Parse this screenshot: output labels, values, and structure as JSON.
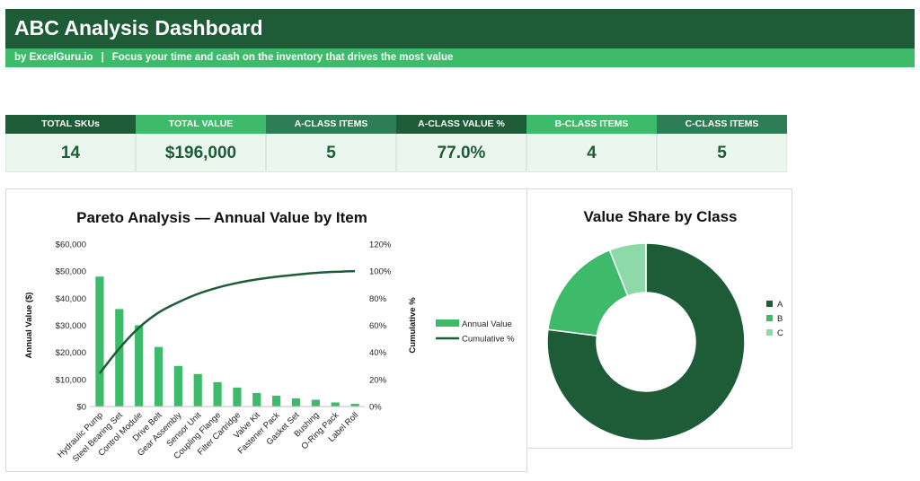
{
  "header": {
    "title": "ABC Analysis Dashboard",
    "byline": "by ExcelGuru.io",
    "separator": "|",
    "tagline": "Focus your time and cash on the inventory that drives the most value"
  },
  "colors": {
    "dark_green": "#1e5c38",
    "green": "#3dba6a",
    "mid_green": "#2e7d57",
    "light_green": "#8ed9a8",
    "kpi_value_bg": "#eaf6ee"
  },
  "kpis": [
    {
      "label": "TOTAL SKUs",
      "value": "14",
      "color": "#1e5c38"
    },
    {
      "label": "TOTAL VALUE",
      "value": "$196,000",
      "color": "#3dba6a"
    },
    {
      "label": "A-CLASS ITEMS",
      "value": "5",
      "color": "#2e7d57"
    },
    {
      "label": "A-CLASS VALUE %",
      "value": "77.0%",
      "color": "#1e5c38"
    },
    {
      "label": "B-CLASS ITEMS",
      "value": "4",
      "color": "#3dba6a"
    },
    {
      "label": "C-CLASS ITEMS",
      "value": "5",
      "color": "#2e7d57"
    }
  ],
  "chart_data": [
    {
      "type": "bar",
      "title": "Pareto Analysis — Annual Value by Item",
      "xlabel": "",
      "ylabel": "Annual Value ($)",
      "y2label": "Cumulative %",
      "categories": [
        "Hydraulic Pump",
        "Steel Bearing Set",
        "Control Module",
        "Drive Belt",
        "Gear Assembly",
        "Sensor Unit",
        "Coupling Flange",
        "Filter Cartridge",
        "Valve Kit",
        "Fastener Pack",
        "Gasket Set",
        "Bushing",
        "O-Ring Pack",
        "Label Roll"
      ],
      "series": [
        {
          "name": "Annual Value",
          "type": "bar",
          "axis": "left",
          "color": "#3dba6a",
          "values": [
            48000,
            36000,
            30000,
            22000,
            15000,
            12000,
            9000,
            7000,
            5000,
            4000,
            3000,
            2500,
            1500,
            1000
          ]
        },
        {
          "name": "Cumulative %",
          "type": "line",
          "axis": "right",
          "color": "#1e5c38",
          "values": [
            24.5,
            42.9,
            58.2,
            69.4,
            77.0,
            83.2,
            87.8,
            91.3,
            93.9,
            95.9,
            97.4,
            98.7,
            99.5,
            100.0
          ]
        }
      ],
      "ylim": [
        0,
        60000
      ],
      "y_ticks": [
        "$0",
        "$10,000",
        "$20,000",
        "$30,000",
        "$40,000",
        "$50,000",
        "$60,000"
      ],
      "y2lim": [
        0,
        120
      ],
      "y2_ticks": [
        "0%",
        "20%",
        "40%",
        "60%",
        "80%",
        "100%",
        "120%"
      ],
      "grid": false,
      "legend": "right"
    },
    {
      "type": "pie",
      "variant": "donut",
      "title": "Value Share by Class",
      "categories": [
        "A",
        "B",
        "C"
      ],
      "values": [
        77.0,
        17.0,
        6.0
      ],
      "colors": [
        "#1e5c38",
        "#3dba6a",
        "#8ed9a8"
      ],
      "legend": "right"
    }
  ]
}
